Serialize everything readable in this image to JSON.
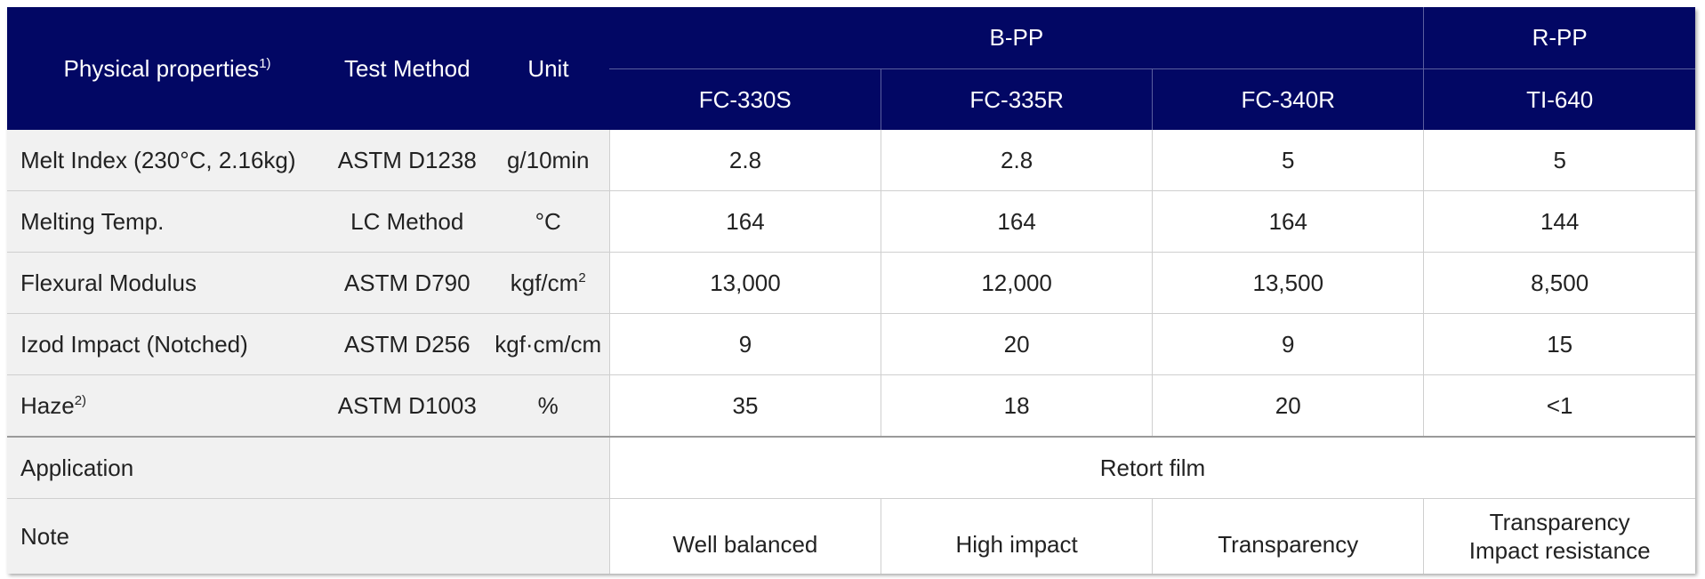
{
  "header": {
    "physical_properties": "Physical properties",
    "physical_properties_sup": "1)",
    "test_method": "Test Method",
    "unit": "Unit",
    "group_bpp": "B-PP",
    "group_rpp": "R-PP",
    "grades": [
      "FC-330S",
      "FC-335R",
      "FC-340R",
      "TI-640"
    ]
  },
  "rows": [
    {
      "property": "Melt Index (230°C, 2.16kg)",
      "sup": "",
      "method": "ASTM D1238",
      "unit": "g/10min",
      "unit_sup": "",
      "values": [
        "2.8",
        "2.8",
        "5",
        "5"
      ]
    },
    {
      "property": "Melting Temp.",
      "sup": "",
      "method": "LC Method",
      "unit": "°C",
      "unit_sup": "",
      "values": [
        "164",
        "164",
        "164",
        "144"
      ]
    },
    {
      "property": "Flexural Modulus",
      "sup": "",
      "method": "ASTM D790",
      "unit": "kgf/cm",
      "unit_sup": "2",
      "values": [
        "13,000",
        "12,000",
        "13,500",
        "8,500"
      ]
    },
    {
      "property": "Izod Impact (Notched)",
      "sup": "",
      "method": "ASTM D256",
      "unit": "kgf·cm/cm",
      "unit_sup": "",
      "values": [
        "9",
        "20",
        "9",
        "15"
      ]
    },
    {
      "property": "Haze",
      "sup": "2)",
      "method": "ASTM D1003",
      "unit": "%",
      "unit_sup": "",
      "values": [
        "35",
        "18",
        "20",
        "<1"
      ]
    }
  ],
  "application": {
    "label": "Application",
    "value": "Retort film"
  },
  "note": {
    "label": "Note",
    "values": [
      "Well balanced",
      "High impact",
      "Transparency"
    ],
    "last_line1": "Transparency",
    "last_line2": "Impact resistance"
  }
}
